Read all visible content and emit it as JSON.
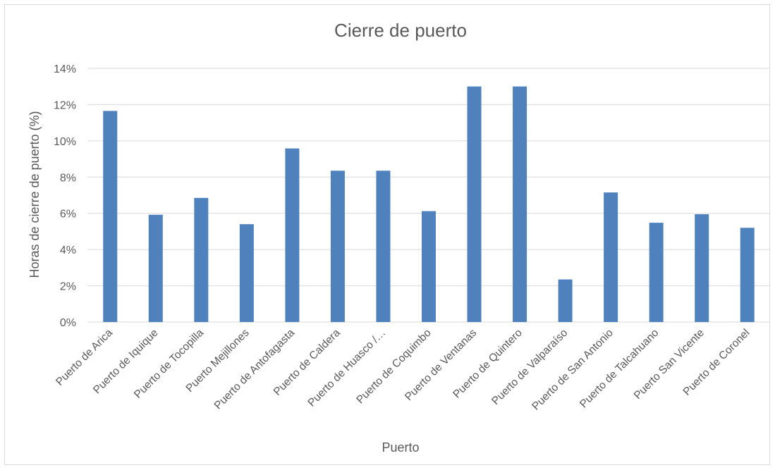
{
  "chart_data": {
    "type": "bar",
    "title": "Cierre de puerto",
    "xlabel": "Puerto",
    "ylabel": "Horas de cierre de puerto (%)",
    "categories": [
      "Puerto de Arica",
      "Puerto de Iquique",
      "Puerto de Tocopilla",
      "Puerto Mejillones",
      "Puerto de Antofagasta",
      "Puerto de Caldera",
      "Puerto de Huasco /…",
      "Puerto de Coquimbo",
      "Puerto de Ventanas",
      "Puerto de Quintero",
      "Puerto de Valparaíso",
      "Puerto de San Antonio",
      "Puerto de Talcahuano",
      "Puerto San Vicente",
      "Puerto de Coronel"
    ],
    "values": [
      11.65,
      5.92,
      6.85,
      5.4,
      9.58,
      8.35,
      8.35,
      6.12,
      13.0,
      13.0,
      2.35,
      7.15,
      5.48,
      5.95,
      5.2
    ],
    "ylim": [
      0,
      14
    ],
    "yticks": [
      0,
      2,
      4,
      6,
      8,
      10,
      12,
      14
    ],
    "ytick_labels": [
      "0%",
      "2%",
      "4%",
      "6%",
      "8%",
      "10%",
      "12%",
      "14%"
    ],
    "grid": true,
    "legend": "none",
    "bar_color": "#4f81bd"
  }
}
